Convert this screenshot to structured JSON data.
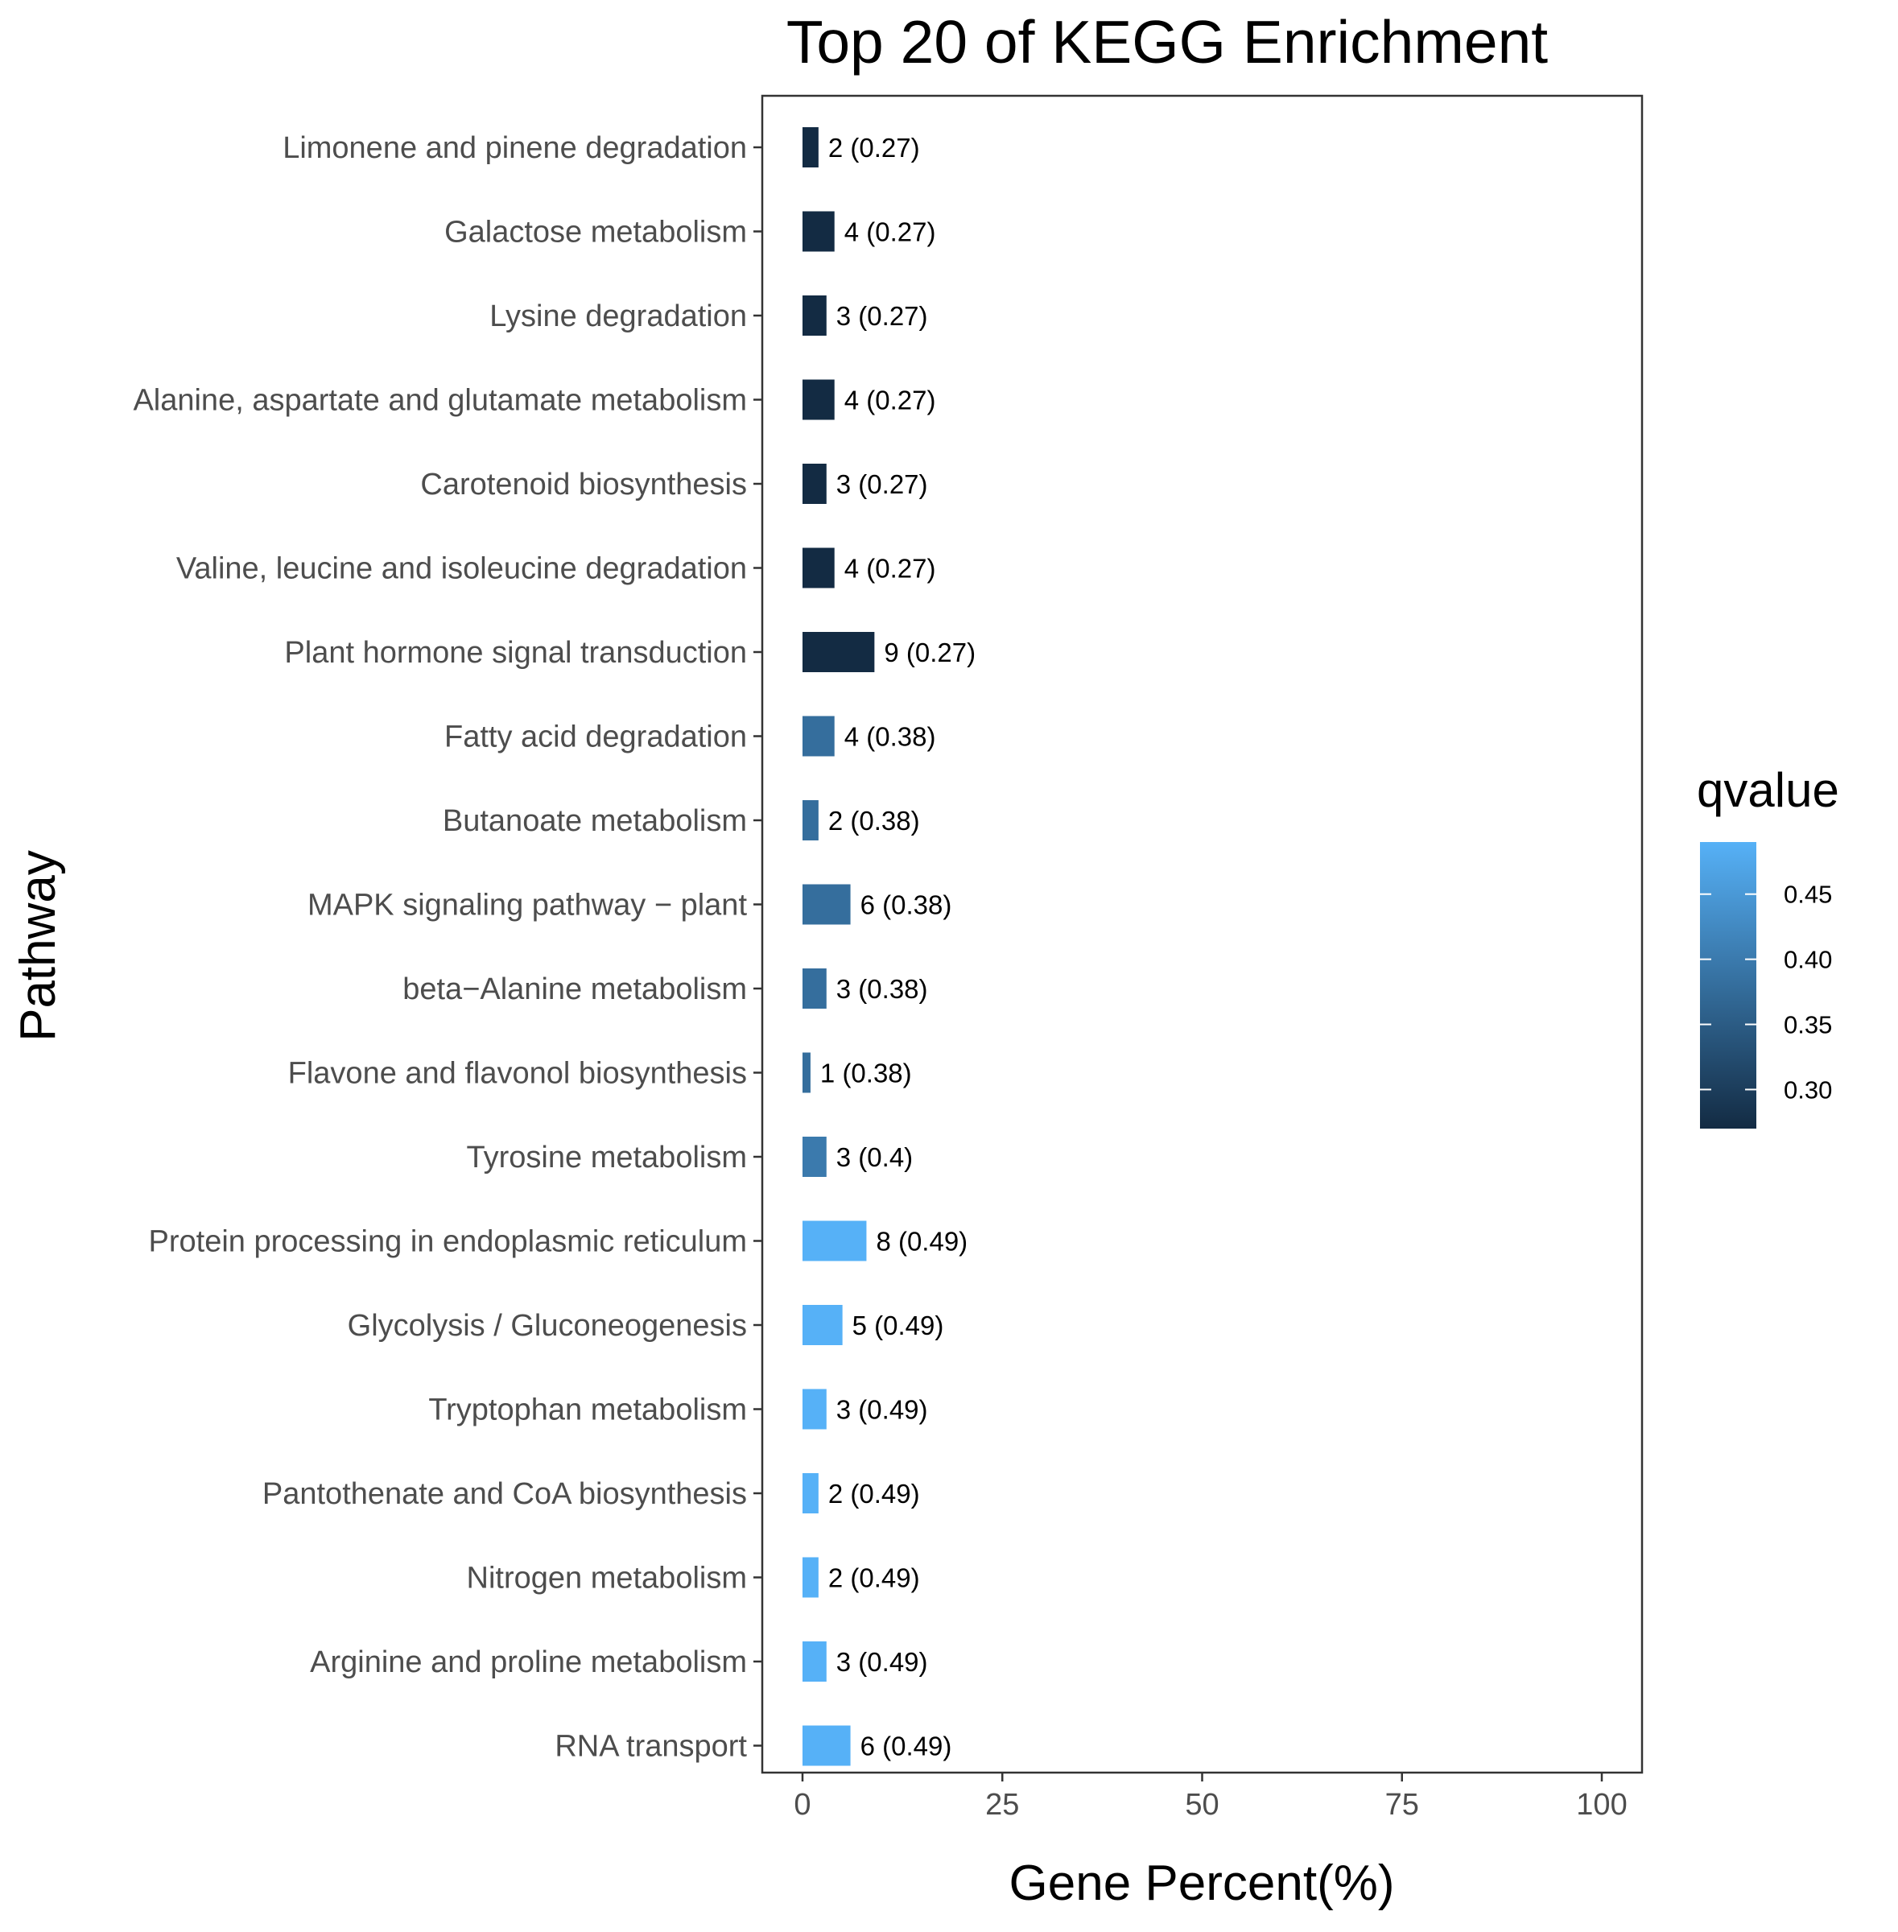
{
  "chart_data": {
    "type": "bar",
    "orientation": "horizontal",
    "title": "Top 20 of KEGG Enrichment",
    "xlabel": "Gene Percent(%)",
    "ylabel": "Pathway",
    "xlim": [
      0,
      100
    ],
    "xticks": [
      0,
      25,
      50,
      75,
      100
    ],
    "xtick_labels": [
      "0",
      "25",
      "50",
      "75",
      "100"
    ],
    "grid": false,
    "categories": [
      "Limonene and pinene degradation",
      "Galactose metabolism",
      "Lysine degradation",
      "Alanine, aspartate and glutamate metabolism",
      "Carotenoid biosynthesis",
      "Valine, leucine and isoleucine degradation",
      "Plant hormone signal transduction",
      "Fatty acid degradation",
      "Butanoate metabolism",
      "MAPK signaling pathway − plant",
      "beta−Alanine metabolism",
      "Flavone and flavonol biosynthesis",
      "Tyrosine metabolism",
      "Protein processing in endoplasmic reticulum",
      "Glycolysis / Gluconeogenesis",
      "Tryptophan metabolism",
      "Pantothenate and CoA biosynthesis",
      "Nitrogen metabolism",
      "Arginine and proline metabolism",
      "RNA transport"
    ],
    "values": [
      2,
      4,
      3,
      4,
      3,
      4,
      9,
      4,
      2,
      6,
      3,
      1,
      3,
      8,
      5,
      3,
      2,
      2,
      3,
      6
    ],
    "qvalues": [
      0.27,
      0.27,
      0.27,
      0.27,
      0.27,
      0.27,
      0.27,
      0.38,
      0.38,
      0.38,
      0.38,
      0.38,
      0.4,
      0.49,
      0.49,
      0.49,
      0.49,
      0.49,
      0.49,
      0.49
    ],
    "data_labels": [
      "2 (0.27)",
      "4 (0.27)",
      "3 (0.27)",
      "4 (0.27)",
      "3 (0.27)",
      "4 (0.27)",
      "9 (0.27)",
      "4 (0.38)",
      "2 (0.38)",
      "6 (0.38)",
      "3 (0.38)",
      "1 (0.38)",
      "3 (0.4)",
      "8 (0.49)",
      "5 (0.49)",
      "3 (0.49)",
      "2 (0.49)",
      "2 (0.49)",
      "3 (0.49)",
      "6 (0.49)"
    ],
    "legend": {
      "title": "qvalue",
      "position": "right",
      "range": [
        0.27,
        0.49
      ],
      "ticks": [
        0.3,
        0.35,
        0.4,
        0.45
      ],
      "tick_labels": [
        "0.30",
        "0.35",
        "0.40",
        "0.45"
      ],
      "color_low": "#132B43",
      "color_high": "#56B1F7"
    }
  }
}
